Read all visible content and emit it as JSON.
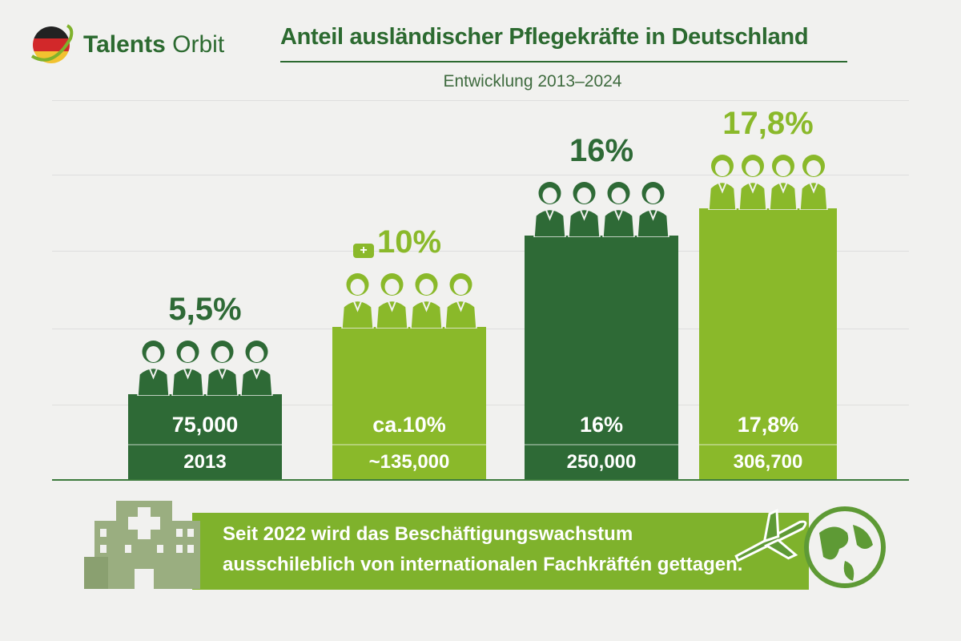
{
  "logo": {
    "brand_bold": "Talents",
    "brand_light": "Orbit"
  },
  "title": "Anteil ausländischer Pflegekräfte in Deutschland",
  "subtitle": "Entwicklung 2013–2024",
  "colors": {
    "dark_green": "#2e6a36",
    "light_green": "#8ab92a",
    "title": "#2c6a30",
    "banner": "#7fb22c"
  },
  "chart_data": {
    "type": "bar",
    "title": "Anteil ausländischer Pflegekräfte in Deutschland",
    "subtitle": "Entwicklung 2013–2024",
    "values": [
      5.5,
      10,
      16,
      17.8
    ],
    "bars": [
      {
        "top_label": "5,5%",
        "inner_label": "75,000",
        "bottom_label": "2013",
        "value": 5.5,
        "color": "#2e6a36"
      },
      {
        "top_label": "10%",
        "inner_label": "ca.10%",
        "bottom_label": "~135,000",
        "value": 10,
        "color": "#8ab92a",
        "icon": "medical-kit-icon"
      },
      {
        "top_label": "16%",
        "inner_label": "16%",
        "bottom_label": "250,000",
        "value": 16,
        "color": "#2e6a36"
      },
      {
        "top_label": "17,8%",
        "inner_label": "17,8%",
        "bottom_label": "306,700",
        "value": 17.8,
        "color": "#8ab92a"
      }
    ],
    "grid": true
  },
  "banner": {
    "line1": "Seit 2022 wird das Beschäftigungswachstum",
    "line2": "ausschileblich von internationalen Fachkräftén gettagen."
  }
}
